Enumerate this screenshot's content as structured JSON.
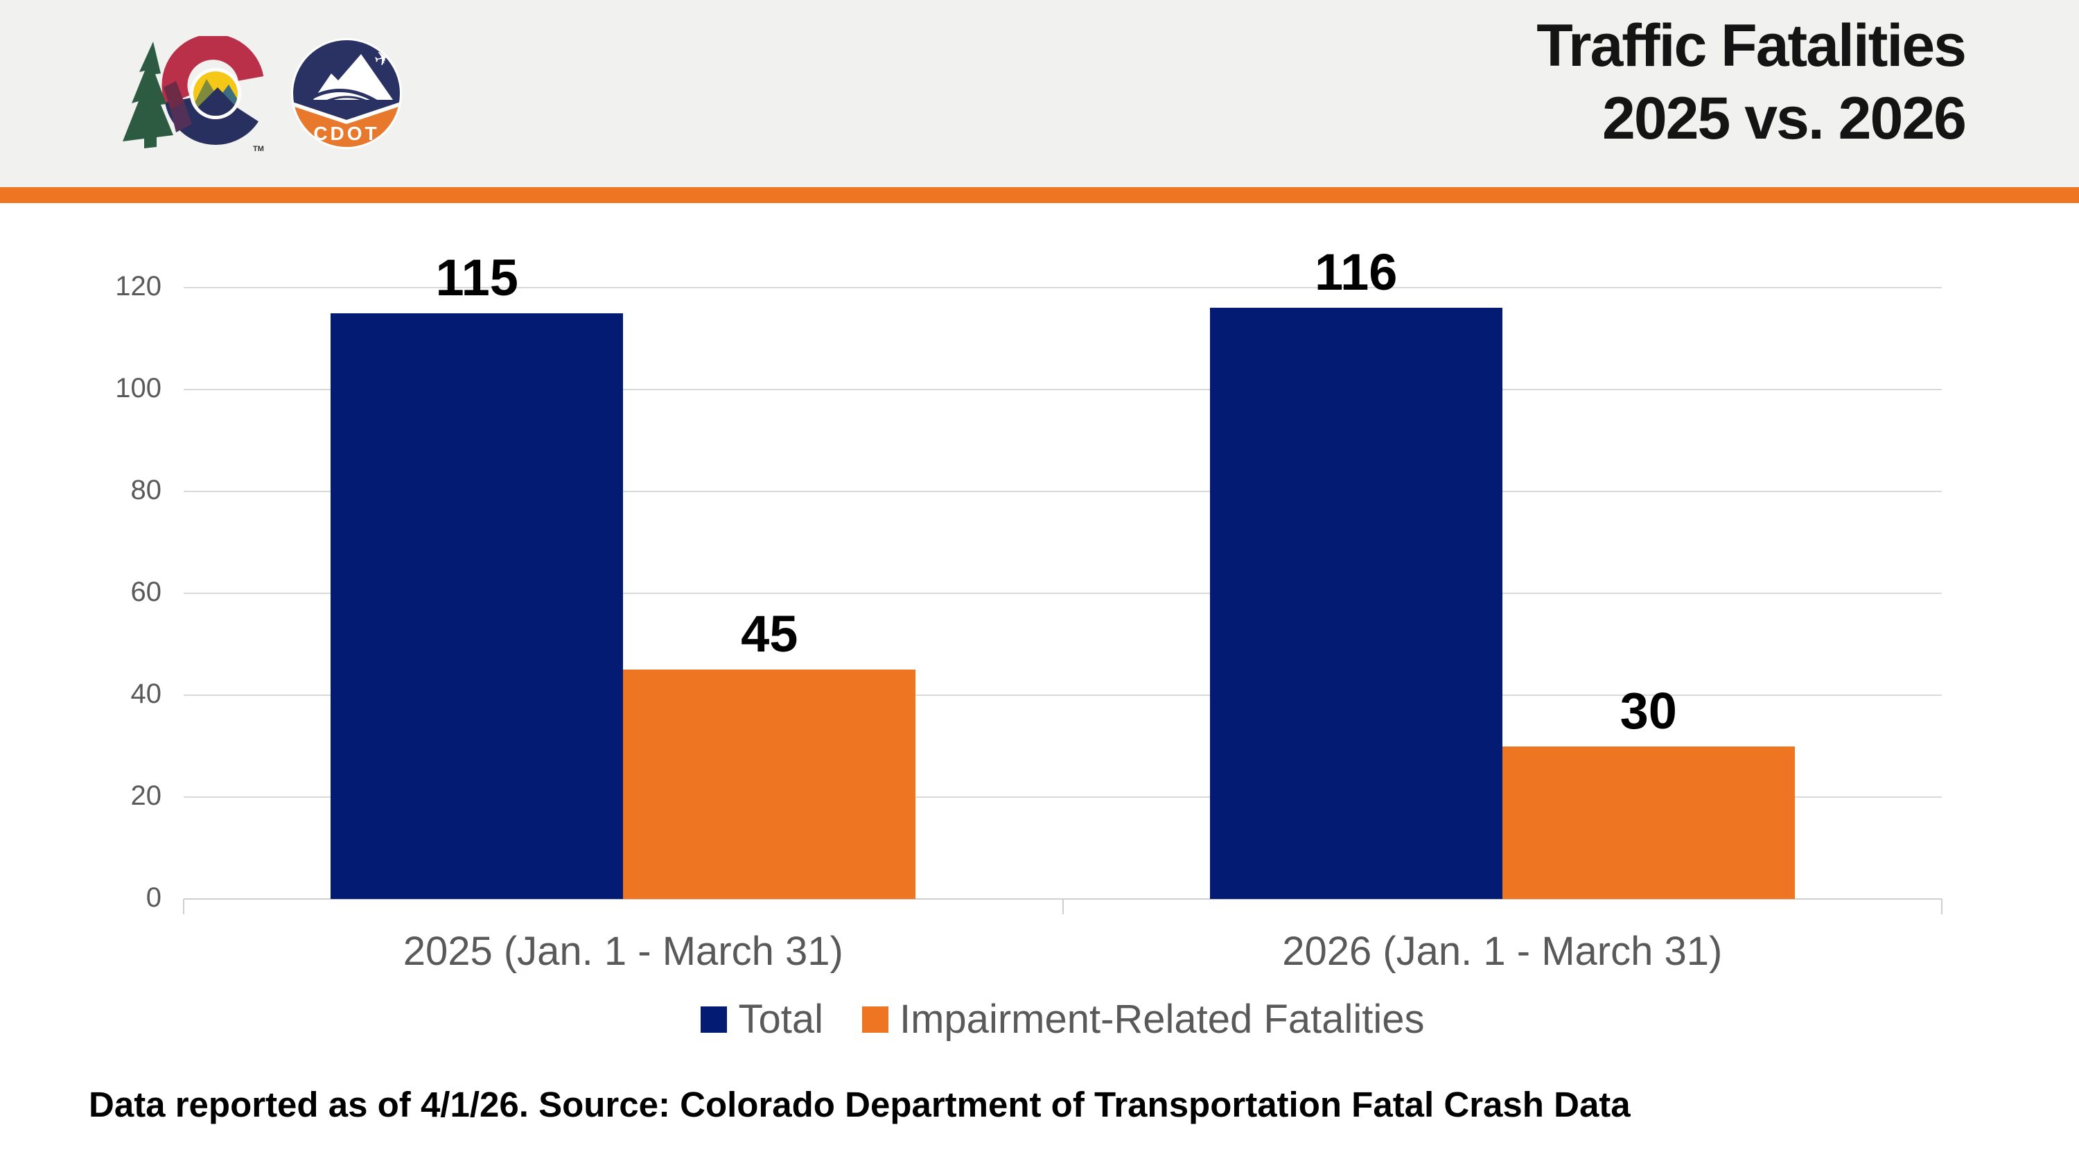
{
  "header": {
    "title_line1": "Traffic Fatalities",
    "title_line2": "2025 vs. 2026",
    "cdot_label": "CDOT",
    "trademark": "TM"
  },
  "footer": {
    "note": "Data reported as of 4/1/26. Source: Colorado Department of Transportation Fatal Crash Data"
  },
  "colors": {
    "navy": "#031B72",
    "orange": "#EE7623",
    "divider": "#EE7623",
    "grid": "#D9D9D9",
    "axis_text": "#595959",
    "header_bg": "#F1F1F0"
  },
  "chart_data": {
    "type": "bar",
    "title": "Traffic Fatalities 2025 vs. 2026",
    "categories": [
      "2025 (Jan. 1 - March 31)",
      "2026 (Jan. 1 - March 31)"
    ],
    "series": [
      {
        "name": "Total",
        "color_key": "navy",
        "values": [
          115,
          116
        ]
      },
      {
        "name": "Impairment-Related Fatalities",
        "color_key": "orange",
        "values": [
          45,
          30
        ]
      }
    ],
    "value_labels": [
      [
        115,
        116
      ],
      [
        45,
        30
      ]
    ],
    "xlabel": "",
    "ylabel": "",
    "ylim": [
      0,
      120
    ],
    "y_ticks": [
      0,
      20,
      40,
      60,
      80,
      100,
      120
    ],
    "grid": true,
    "legend_position": "bottom"
  }
}
